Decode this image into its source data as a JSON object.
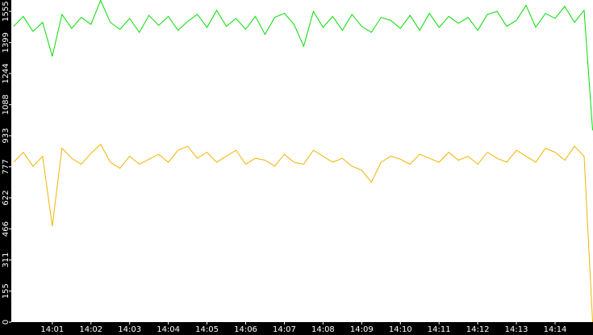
{
  "chart_data": {
    "type": "line",
    "x": [
      0,
      0.25,
      0.5,
      0.75,
      1,
      1.25,
      1.5,
      1.75,
      2,
      2.25,
      2.5,
      2.75,
      3,
      3.25,
      3.5,
      3.75,
      4,
      4.25,
      4.5,
      4.75,
      5,
      5.25,
      5.5,
      5.75,
      6,
      6.25,
      6.5,
      6.75,
      7,
      7.25,
      7.5,
      7.75,
      8,
      8.25,
      8.5,
      8.75,
      9,
      9.25,
      9.5,
      9.75,
      10,
      10.25,
      10.5,
      10.75,
      11,
      11.25,
      11.5,
      11.75,
      12,
      12.25,
      12.5,
      12.75,
      13,
      13.25,
      13.5,
      13.75,
      14,
      14.25,
      14.5,
      14.75,
      14.97
    ],
    "series": [
      {
        "color": "#00dd00",
        "values": [
          1480,
          1530,
          1455,
          1500,
          1330,
          1540,
          1470,
          1525,
          1490,
          1610,
          1500,
          1465,
          1520,
          1450,
          1535,
          1485,
          1530,
          1460,
          1505,
          1540,
          1475,
          1560,
          1480,
          1520,
          1465,
          1530,
          1440,
          1525,
          1545,
          1490,
          1380,
          1555,
          1475,
          1530,
          1460,
          1540,
          1480,
          1450,
          1525,
          1510,
          1470,
          1535,
          1460,
          1545,
          1475,
          1530,
          1495,
          1525,
          1460,
          1540,
          1555,
          1480,
          1510,
          1585,
          1475,
          1545,
          1520,
          1580,
          1500,
          1560,
          960
        ]
      },
      {
        "color": "#f0b400",
        "values": [
          800,
          850,
          780,
          830,
          480,
          870,
          820,
          790,
          845,
          890,
          800,
          770,
          830,
          790,
          815,
          840,
          800,
          860,
          880,
          820,
          850,
          800,
          830,
          860,
          790,
          820,
          810,
          780,
          840,
          800,
          790,
          860,
          830,
          800,
          820,
          780,
          760,
          700,
          800,
          830,
          815,
          790,
          840,
          820,
          800,
          850,
          810,
          830,
          790,
          850,
          820,
          800,
          860,
          830,
          800,
          870,
          850,
          810,
          880,
          830,
          0
        ]
      }
    ],
    "xlim": [
      -0.06,
      14.98
    ],
    "xticks": [
      {
        "value": 1,
        "label": "14:01"
      },
      {
        "value": 2,
        "label": "14:02"
      },
      {
        "value": 3,
        "label": "14:03"
      },
      {
        "value": 4,
        "label": "14:04"
      },
      {
        "value": 5,
        "label": "14:05"
      },
      {
        "value": 6,
        "label": "14:06"
      },
      {
        "value": 7,
        "label": "14:07"
      },
      {
        "value": 8,
        "label": "14:08"
      },
      {
        "value": 9,
        "label": "14:09"
      },
      {
        "value": 10,
        "label": "14:10"
      },
      {
        "value": 11,
        "label": "14:11"
      },
      {
        "value": 12,
        "label": "14:12"
      },
      {
        "value": 13,
        "label": "14:13"
      },
      {
        "value": 14,
        "label": "14:14"
      }
    ],
    "ylim": [
      0,
      1612
    ],
    "yticks": [
      0,
      155,
      311,
      466,
      622,
      777,
      933,
      1088,
      1244,
      1399,
      1555
    ]
  }
}
